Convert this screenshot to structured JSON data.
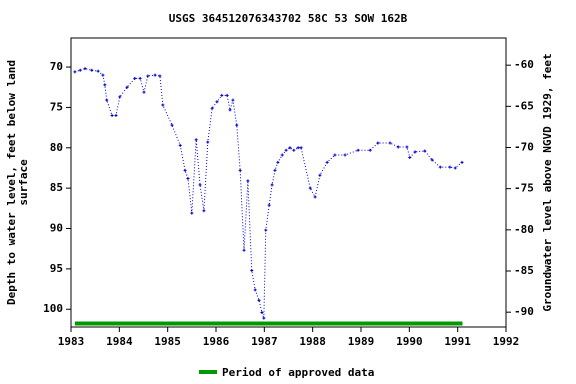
{
  "chart_data": {
    "type": "line",
    "title": "USGS 364512076343702 58C 53 SOW 162B",
    "y_label_lines": [
      "Depth to water level, feet below land",
      "surface"
    ],
    "y2_label": "Groundwater level above NGVD 1929, feet",
    "color": "#0000cc",
    "x": [
      1983.08,
      1983.19,
      1983.29,
      1983.43,
      1983.56,
      1983.66,
      1983.7,
      1983.74,
      1983.85,
      1983.93,
      1984.01,
      1984.16,
      1984.32,
      1984.43,
      1984.51,
      1984.59,
      1984.74,
      1984.84,
      1984.9,
      1985.09,
      1985.26,
      1985.36,
      1985.42,
      1985.5,
      1985.59,
      1985.67,
      1985.75,
      1985.83,
      1985.92,
      1986.02,
      1986.12,
      1986.23,
      1986.29,
      1986.35,
      1986.43,
      1986.5,
      1986.58,
      1986.66,
      1986.74,
      1986.81,
      1986.89,
      1986.95,
      1986.99,
      1987.03,
      1987.1,
      1987.16,
      1987.22,
      1987.28,
      1987.37,
      1987.45,
      1987.53,
      1987.61,
      1987.7,
      1987.76,
      1987.95,
      1988.05,
      1988.15,
      1988.3,
      1988.46,
      1988.67,
      1988.94,
      1989.19,
      1989.35,
      1989.6,
      1989.77,
      1989.95,
      1990.01,
      1990.12,
      1990.32,
      1990.47,
      1990.64,
      1990.84,
      1990.95,
      1991.09
    ],
    "values": [
      70.6,
      70.4,
      70.2,
      70.4,
      70.5,
      71.0,
      72.2,
      74.1,
      76.0,
      76.0,
      73.7,
      72.5,
      71.4,
      71.4,
      73.1,
      71.1,
      71.0,
      71.1,
      74.7,
      77.2,
      79.7,
      82.8,
      83.8,
      88.1,
      79.0,
      84.6,
      87.8,
      79.3,
      75.1,
      74.3,
      73.5,
      73.5,
      75.3,
      74.1,
      77.2,
      82.8,
      92.7,
      84.1,
      95.2,
      97.6,
      98.9,
      100.4,
      101.1,
      90.2,
      87.1,
      84.6,
      82.8,
      81.8,
      80.9,
      80.3,
      80.0,
      80.3,
      80.0,
      80.0,
      85.0,
      86.1,
      83.4,
      81.8,
      80.9,
      80.9,
      80.3,
      80.3,
      79.4,
      79.4,
      79.9,
      79.9,
      81.2,
      80.5,
      80.4,
      81.5,
      82.4,
      82.4,
      82.5,
      81.8
    ],
    "xlim": [
      1983,
      1992
    ],
    "xticks": [
      1983,
      1984,
      1985,
      1986,
      1987,
      1988,
      1989,
      1990,
      1991,
      1992
    ],
    "ylim": [
      102.2,
      66.4
    ],
    "yticks": [
      70,
      75,
      80,
      85,
      90,
      95,
      100
    ],
    "y2lim": [
      -91.8,
      -56.7
    ],
    "y2ticks": [
      -60,
      -65,
      -70,
      -75,
      -80,
      -85,
      -90
    ],
    "approved_period": {
      "start": 1983.08,
      "end": 1991.1,
      "color": "#009900",
      "label": "Period of approved data"
    }
  }
}
